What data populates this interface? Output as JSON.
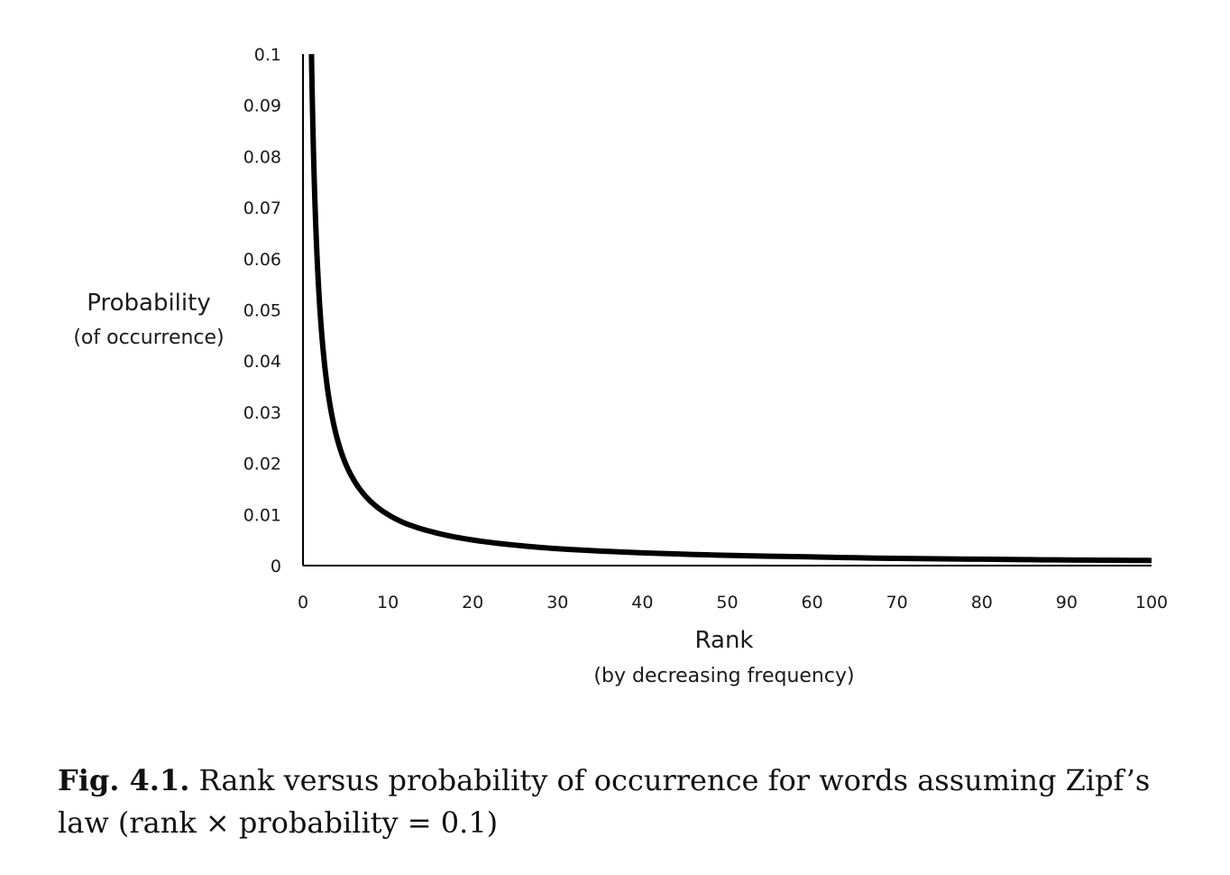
{
  "chart_data": {
    "type": "line",
    "x_axis": {
      "label": "Rank",
      "sublabel": "(by decreasing frequency)",
      "range": [
        0,
        100
      ],
      "ticks": [
        "0",
        "10",
        "20",
        "30",
        "40",
        "50",
        "60",
        "70",
        "80",
        "90",
        "100"
      ]
    },
    "y_axis": {
      "label": "Probability",
      "sublabel": "(of occurrence)",
      "range": [
        0,
        0.1
      ],
      "ticks": [
        "0",
        "0.01",
        "0.02",
        "0.03",
        "0.04",
        "0.05",
        "0.06",
        "0.07",
        "0.08",
        "0.09",
        "0.1"
      ]
    },
    "series": [
      {
        "color": "#000000",
        "x": [
          1,
          1.25,
          1.5,
          2,
          2.5,
          3,
          4,
          5,
          6,
          7,
          8,
          10,
          12,
          15,
          20,
          25,
          30,
          40,
          50,
          60,
          70,
          80,
          90,
          100
        ],
        "y": [
          0.1,
          0.08,
          0.0667,
          0.05,
          0.04,
          0.0333,
          0.025,
          0.02,
          0.0167,
          0.0143,
          0.0125,
          0.01,
          0.0083,
          0.0067,
          0.005,
          0.004,
          0.0033,
          0.0025,
          0.002,
          0.0017,
          0.0014,
          0.00125,
          0.0011,
          0.001
        ]
      }
    ],
    "grid": false,
    "legend": "none"
  },
  "caption": {
    "label": "Fig. 4.1.",
    "text": " Rank versus probability of occurrence for words assuming Zipf’s law (rank × probability = 0.1)"
  }
}
